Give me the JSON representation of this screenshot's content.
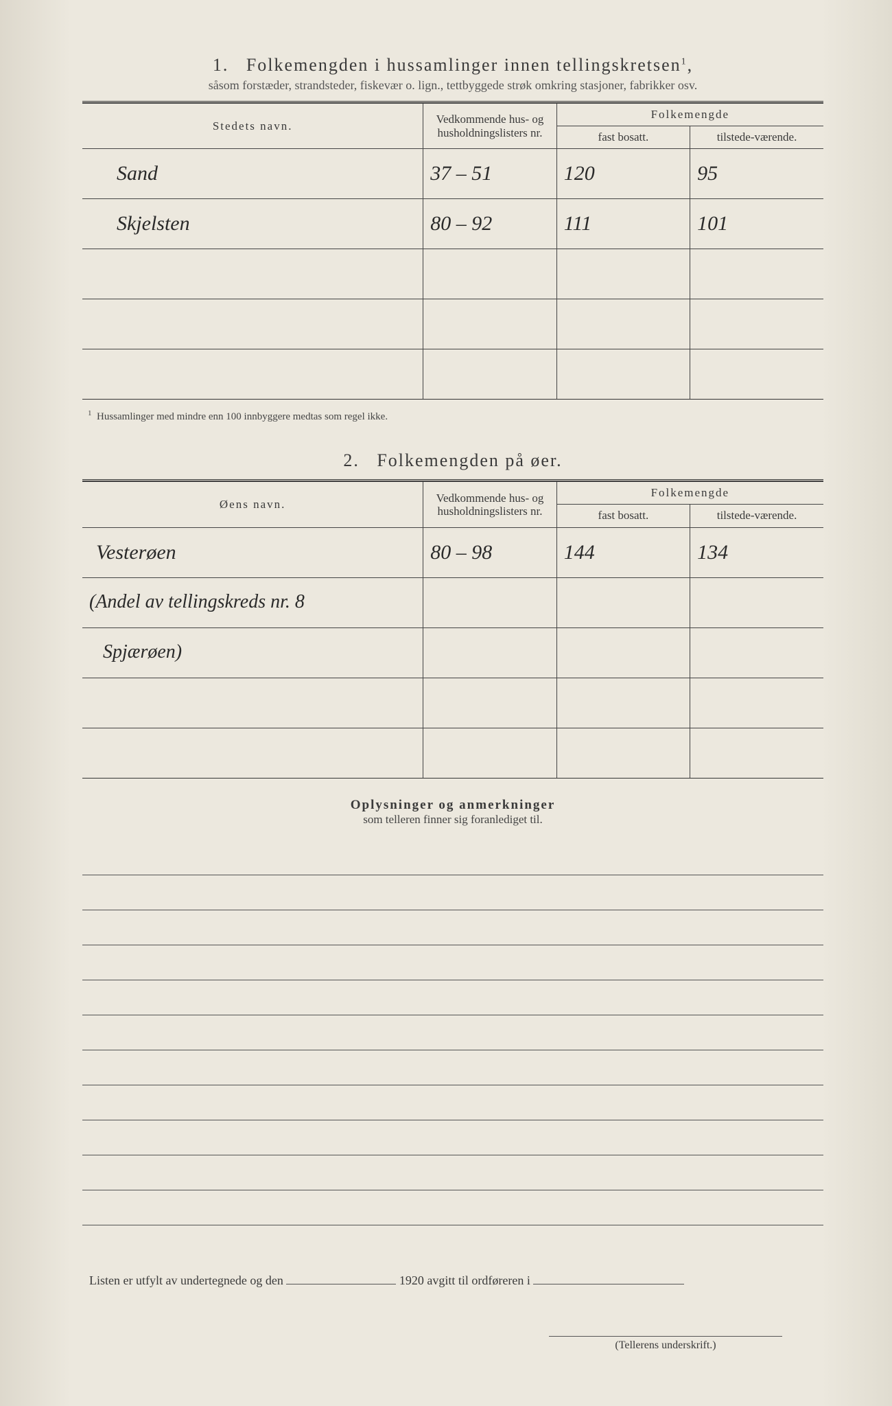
{
  "colors": {
    "paper_bg": "#ece8de",
    "ink": "#3a3a3a",
    "rule": "#444444",
    "handwriting": "#2a2a2a"
  },
  "section1": {
    "number": "1.",
    "title_main": "Folkemengden i hussamlinger innen tellingskretsen",
    "title_super": "1",
    "subtitle": "såsom forstæder, strandsteder, fiskevær o. lign., tettbyggede strøk omkring stasjoner, fabrikker osv.",
    "col_name": "Stedets navn.",
    "col_hus": "Vedkommende hus- og husholdningslisters nr.",
    "col_pop_group": "Folkemengde",
    "col_fast": "fast bosatt.",
    "col_tilstede": "tilstede-værende.",
    "rows": [
      {
        "name": "Sand",
        "hus": "37 – 51",
        "fast": "120",
        "til": "95"
      },
      {
        "name": "Skjelsten",
        "hus": "80 – 92",
        "fast": "111",
        "til": "101"
      }
    ],
    "footnote_marker": "1",
    "footnote": "Hussamlinger med mindre enn 100 innbyggere medtas som regel ikke."
  },
  "section2": {
    "number": "2.",
    "title_main": "Folkemengden på øer.",
    "col_name": "Øens navn.",
    "col_hus": "Vedkommende hus- og husholdningslisters nr.",
    "col_pop_group": "Folkemengde",
    "col_fast": "fast bosatt.",
    "col_tilstede": "tilstede-værende.",
    "rows": [
      {
        "name": "Vesterøen",
        "hus": "80 – 98",
        "fast": "144",
        "til": "134"
      }
    ],
    "extra_note_line1": "(Andel av tellingskreds nr. 8",
    "extra_note_line2": "Spjærøen)"
  },
  "remarks": {
    "title": "Oplysninger og anmerkninger",
    "subtitle": "som telleren finner sig foranlediget til.",
    "blank_line_count": 11
  },
  "footer": {
    "text_a": "Listen er utfylt av undertegnede og den",
    "text_b": "1920 avgitt til ordføreren i",
    "signature_label": "(Tellerens underskrift.)"
  }
}
